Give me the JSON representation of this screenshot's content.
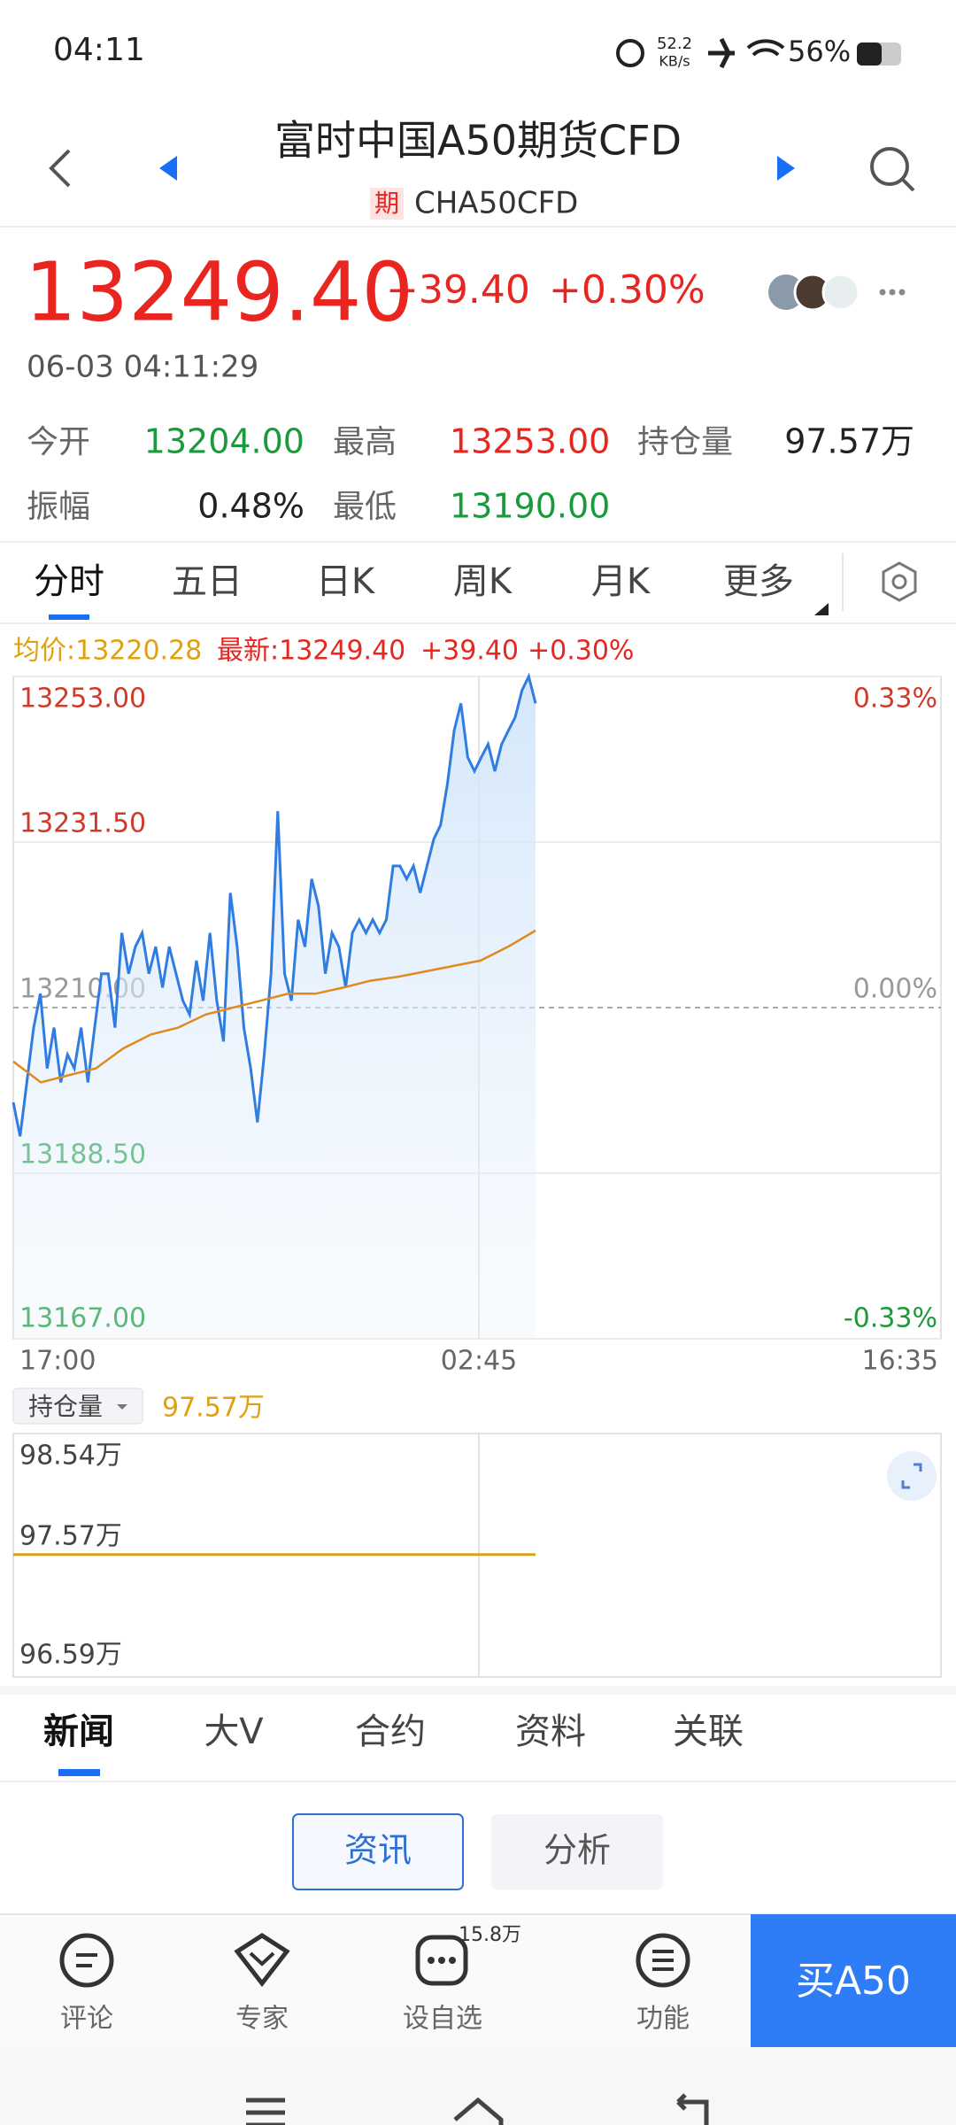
{
  "status_bar": {
    "time": "04:11",
    "net_speed": "52.2",
    "net_unit": "KB/s",
    "battery": "56%"
  },
  "header": {
    "title": "富时中国A50期货CFD",
    "badge": "期",
    "code": "CHA50CFD"
  },
  "quote": {
    "price": "13249.40",
    "change": "+39.40",
    "change_pct": "+0.30%",
    "timestamp": "06-03 04:11:29"
  },
  "stats": [
    {
      "label": "今开",
      "value": "13204.00",
      "color": "#1a9a3a"
    },
    {
      "label": "最高",
      "value": "13253.00",
      "color": "#e8251f"
    },
    {
      "label": "持仓量",
      "value": "97.57万",
      "color": "#222222"
    },
    {
      "label": "振幅",
      "value": "0.48%",
      "color": "#222222"
    },
    {
      "label": "最低",
      "value": "13190.00",
      "color": "#1a9a3a"
    }
  ],
  "chart_tabs": [
    "分时",
    "五日",
    "日K",
    "周K",
    "月K",
    "更多"
  ],
  "price_chart": {
    "type": "line",
    "summary": [
      "均价:13220.28",
      "最新:13249.40",
      "+39.40",
      "+0.30%"
    ],
    "ylim": [
      13167,
      13253
    ],
    "yticks": [
      {
        "value": 13253,
        "label": "13253.00"
      },
      {
        "value": 13231.5,
        "label": "13231.50"
      },
      {
        "value": 13210,
        "label": "13210.00"
      },
      {
        "value": 13188.5,
        "label": "13188.50"
      },
      {
        "value": 13167,
        "label": "13167.00"
      }
    ],
    "y2lim": [
      -0.33,
      0.33
    ],
    "y2ticks": [
      {
        "value": 0.33,
        "label": "0.33%"
      },
      {
        "value": 0,
        "label": "0.00%"
      },
      {
        "value": -0.33,
        "label": "-0.33%"
      }
    ],
    "xlabels": [
      "17:00",
      "02:45",
      "16:35"
    ],
    "series": [
      {
        "color": "#2f7de1",
        "values": [
          13197.7,
          13193.3,
          13200.3,
          13207.4,
          13211.8,
          13202.1,
          13207.4,
          13200.3,
          13203.9,
          13202.1,
          13207.4,
          13200.3,
          13207.4,
          13214.4,
          13214.4,
          13207.4,
          13219.7,
          13214.4,
          13217.9,
          13219.7,
          13214.4,
          13217.9,
          13212.6,
          13217.9,
          13214.4,
          13210.9,
          13209.1,
          13216.1,
          13210.9,
          13219.7,
          13210.9,
          13205.6,
          13224.9,
          13217.9,
          13207.4,
          13202.1,
          13195.1,
          13203.9,
          13214.4,
          13235.5,
          13214.4,
          13210.9,
          13221.4,
          13217.9,
          13226.7,
          13223.2,
          13214.4,
          13219.7,
          13217.9,
          13212.6,
          13219.7,
          13221.4,
          13219.7,
          13221.4,
          13219.7,
          13221.4,
          13228.4,
          13228.4,
          13226.7,
          13228.4,
          13224.9,
          13228.4,
          13231.9,
          13233.7,
          13239.0,
          13246.0,
          13249.5,
          13242.5,
          13240.7,
          13242.5,
          13244.2,
          13240.7,
          13244.2,
          13246.0,
          13247.7,
          13251.2,
          13253.0,
          13249.5
        ]
      },
      {
        "color": "#e08a1e",
        "values": [
          13203.0,
          13200.3,
          13201.2,
          13202.1,
          13204.7,
          13206.5,
          13207.4,
          13209.1,
          13210.0,
          13210.9,
          13211.8,
          13211.8,
          13212.6,
          13213.5,
          13214.0,
          13214.7,
          13215.4,
          13216.1,
          13217.9,
          13220.0
        ]
      }
    ]
  },
  "oi_chart": {
    "type": "line",
    "selector": "持仓量",
    "current": "97.57万",
    "ylim": [
      96.59,
      98.54
    ],
    "yticks": [
      {
        "value": 98.54,
        "label": "98.54万"
      },
      {
        "value": 97.57,
        "label": "97.57万"
      },
      {
        "value": 96.59,
        "label": "96.59万"
      }
    ],
    "series": [
      {
        "color": "#d9a21b",
        "values": [
          97.57,
          97.57
        ]
      }
    ]
  },
  "news_tabs": [
    "新闻",
    "大V",
    "合约",
    "资料",
    "关联"
  ],
  "sub_tabs": [
    "资讯",
    "分析"
  ],
  "bottom_bar": {
    "items": [
      "评论",
      "专家",
      "设自选",
      "功能"
    ],
    "badge": "15.8万",
    "buy": "买A50"
  }
}
